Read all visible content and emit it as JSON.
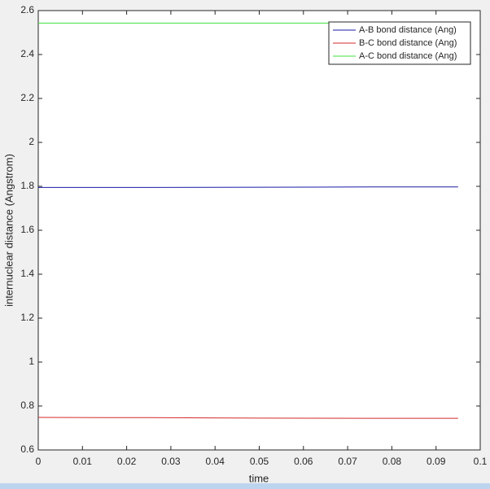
{
  "chart_data": {
    "type": "line",
    "x_label": "time",
    "y_label": "internuclear distance (Angstrom)",
    "x": [
      0,
      0.025,
      0.05,
      0.075,
      0.095
    ],
    "series": [
      {
        "name": "A-B bond distance (Ang)",
        "color": "#1a1aa8",
        "values": [
          1.795,
          1.795,
          1.796,
          1.797,
          1.797
        ]
      },
      {
        "name": "B-C bond distance (Ang)",
        "color": "#d42a2a",
        "values": [
          0.748,
          0.747,
          0.745,
          0.744,
          0.744
        ]
      },
      {
        "name": "A-C bond distance (Ang)",
        "color": "#3ee03e",
        "values": [
          2.543,
          2.543,
          2.543,
          2.543,
          2.543
        ]
      }
    ],
    "xlim": [
      0,
      0.1
    ],
    "xticks": [
      0,
      0.01,
      0.02,
      0.03,
      0.04,
      0.05,
      0.06,
      0.07,
      0.08,
      0.09,
      0.1
    ],
    "ylim": [
      0.6,
      2.6
    ],
    "yticks": [
      0.6,
      0.8,
      1,
      1.2,
      1.4,
      1.6,
      1.8,
      2,
      2.2,
      2.4,
      2.6
    ],
    "grid": false,
    "legend_position": "top-right"
  }
}
